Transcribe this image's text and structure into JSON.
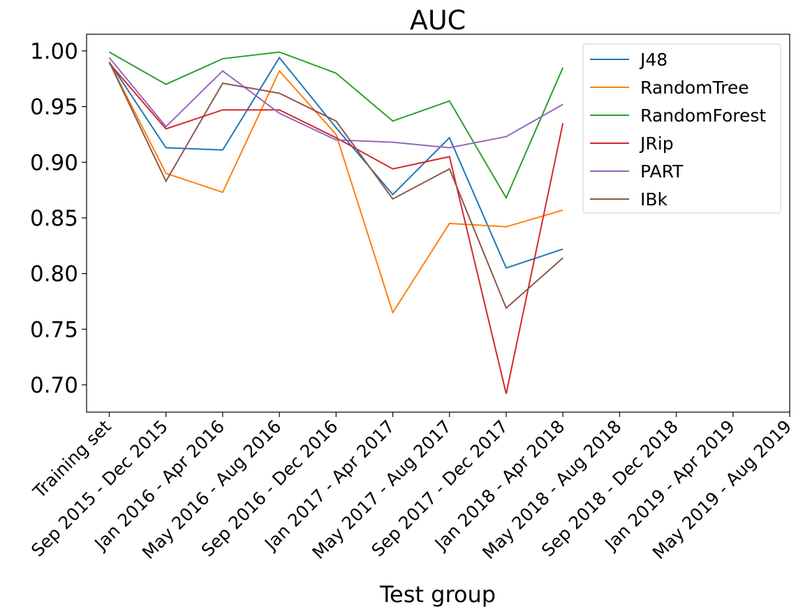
{
  "chart_data": {
    "type": "line",
    "title": "AUC",
    "x_label": "Test group",
    "categories": [
      "Training set",
      "Sep 2015 - Dec 2015",
      "Jan 2016 - Apr 2016",
      "May 2016 - Aug 2016",
      "Sep 2016 - Dec 2016",
      "Jan 2017 - Apr 2017",
      "May 2017 - Aug 2017",
      "Sep 2017 - Dec 2017",
      "Jan 2018 - Apr 2018",
      "May 2018 - Aug 2018",
      "Sep 2018 - Dec 2018",
      "Jan 2019 - Apr 2019",
      "May 2019 - Aug 2019"
    ],
    "series": [
      {
        "name": "J48",
        "color": "#1f77b4",
        "values": [
          0.99,
          0.913,
          0.911,
          0.994,
          0.931,
          0.871,
          0.922,
          0.805,
          0.822,
          null,
          null,
          null,
          null
        ]
      },
      {
        "name": "RandomTree",
        "color": "#ff7f0e",
        "values": [
          0.99,
          0.89,
          0.873,
          0.982,
          0.925,
          0.765,
          0.845,
          0.842,
          0.857,
          null,
          null,
          null,
          null
        ]
      },
      {
        "name": "RandomForest",
        "color": "#2ca02c",
        "values": [
          0.999,
          0.97,
          0.993,
          0.999,
          0.98,
          0.937,
          0.955,
          0.868,
          0.985,
          null,
          null,
          null,
          null
        ]
      },
      {
        "name": "JRip",
        "color": "#d62728",
        "values": [
          0.989,
          0.93,
          0.947,
          0.947,
          0.922,
          0.894,
          0.905,
          0.692,
          0.935,
          null,
          null,
          null,
          null
        ]
      },
      {
        "name": "PART",
        "color": "#9467bd",
        "values": [
          0.994,
          0.932,
          0.982,
          0.944,
          0.92,
          0.918,
          0.913,
          0.923,
          0.952,
          null,
          null,
          null,
          null
        ]
      },
      {
        "name": "IBk",
        "color": "#8c564b",
        "values": [
          0.99,
          0.883,
          0.971,
          0.962,
          0.937,
          0.867,
          0.894,
          0.769,
          0.814,
          null,
          null,
          null,
          null
        ]
      }
    ],
    "xlim": [
      -0.4,
      12
    ],
    "ylim": [
      0.6755,
      1.015
    ],
    "yticks": [
      {
        "value": 0.7,
        "label": "0.70"
      },
      {
        "value": 0.75,
        "label": "0.75"
      },
      {
        "value": 0.8,
        "label": "0.80"
      },
      {
        "value": 0.85,
        "label": "0.85"
      },
      {
        "value": 0.9,
        "label": "0.90"
      },
      {
        "value": 0.95,
        "label": "0.95"
      },
      {
        "value": 1.0,
        "label": "1.00"
      }
    ],
    "legend": "upper right",
    "grid": false
  }
}
